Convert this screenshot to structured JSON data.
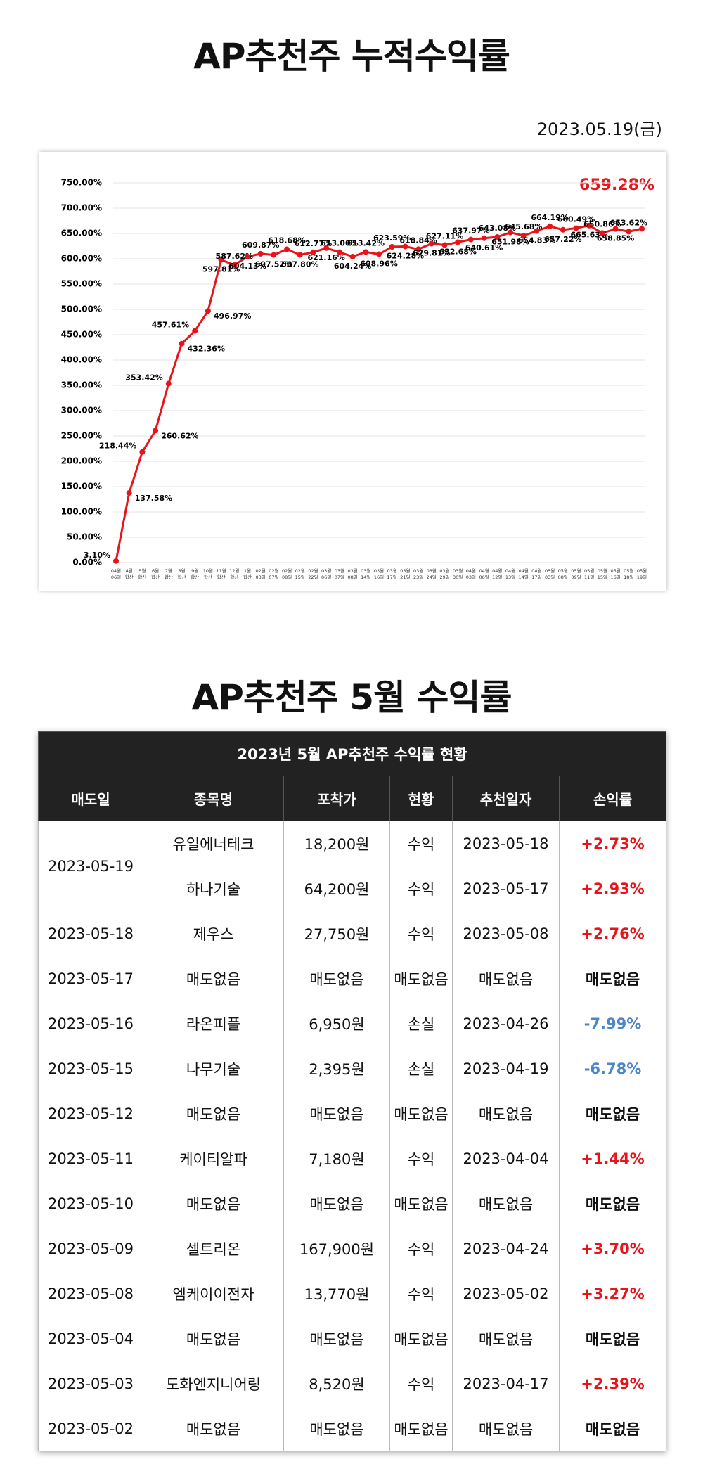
{
  "chart_data": {
    "type": "line",
    "title": "AP추천주 누적수익률",
    "date": "2023.05.19(금)",
    "annotation": "659.28%",
    "categories": [
      "04월 06일",
      "4월 합산",
      "5월 합산",
      "6월 합산",
      "7월 합산",
      "8월 합산",
      "9월 합산",
      "10월 합산",
      "11월 합산",
      "12월 합산",
      "1월 합산",
      "02월 03일",
      "02월 07일",
      "02월 08일",
      "02월 15일",
      "02월 22일",
      "03월 06일",
      "03월 07일",
      "03월 08일",
      "03월 14일",
      "03월 16일",
      "03월 17일",
      "03월 21일",
      "03월 23일",
      "03월 24일",
      "03월 29일",
      "03월 30일",
      "04월 03일",
      "04월 06일",
      "04월 12일",
      "04월 13일",
      "04월 14일",
      "04월 17일",
      "05월 03일",
      "05월 08일",
      "05월 09일",
      "05월 11일",
      "05월 15일",
      "05월 16일",
      "05월 18일",
      "05월 19일"
    ],
    "series": [
      {
        "name": "누적수익률",
        "color": "#e8141b",
        "values": [
          3.1,
          137.58,
          218.44,
          260.62,
          353.42,
          432.36,
          457.61,
          496.97,
          597.81,
          587.62,
          604.13,
          609.87,
          607.52,
          618.68,
          607.8,
          612.77,
          621.16,
          613.0,
          604.24,
          613.42,
          608.96,
          623.59,
          624.28,
          618.84,
          629.81,
          627.11,
          632.68,
          637.97,
          640.61,
          643.08,
          651.98,
          645.68,
          654.83,
          664.19,
          657.22,
          660.49,
          665.63,
          650.86,
          658.85,
          653.62,
          659.28
        ],
        "value_labels": [
          "3.10%",
          "137.58%",
          "218.44%",
          "260.62%",
          "353.42%",
          "432.36%",
          "457.61%",
          "496.97%",
          "597.81%",
          "587.62%",
          "604.13%",
          "609.87%",
          "607.52%",
          "618.68%",
          "607.80%",
          "612.77%",
          "621.16%",
          "613.00%",
          "604.24%",
          "613.42%",
          "608.96%",
          "623.59%",
          "624.28%",
          "618.84%",
          "629.81%",
          "627.11%",
          "632.68%",
          "637.97%",
          "640.61%",
          "643.08%",
          "651.98%",
          "645.68%",
          "654.83%",
          "664.19%",
          "657.22%",
          "660.49%",
          "665.63%",
          "650.86%",
          "658.85%",
          "653.62%",
          "659.28%"
        ]
      }
    ],
    "ylim": [
      0,
      750
    ],
    "yticks": [
      {
        "value": 0,
        "label": "0.00%"
      },
      {
        "value": 50,
        "label": "50.00%"
      },
      {
        "value": 100,
        "label": "100.00%"
      },
      {
        "value": 150,
        "label": "150.00%"
      },
      {
        "value": 200,
        "label": "200.00%"
      },
      {
        "value": 250,
        "label": "250.00%"
      },
      {
        "value": 300,
        "label": "300.00%"
      },
      {
        "value": 350,
        "label": "350.00%"
      },
      {
        "value": 400,
        "label": "400.00%"
      },
      {
        "value": 450,
        "label": "450.00%"
      },
      {
        "value": 500,
        "label": "500.00%"
      },
      {
        "value": 550,
        "label": "550.00%"
      },
      {
        "value": 600,
        "label": "600.00%"
      },
      {
        "value": 650,
        "label": "650.00%"
      },
      {
        "value": 700,
        "label": "700.00%"
      },
      {
        "value": 750,
        "label": "750.00%"
      }
    ],
    "grid": true
  },
  "section_title": "AP추천주 5월 수익률",
  "table": {
    "caption": "2023년 5월 AP추천주 수익률 현황",
    "headers": [
      "매도일",
      "종목명",
      "포착가",
      "현황",
      "추천일자",
      "손익률"
    ],
    "rows": [
      {
        "date": "2023-05-19",
        "items": [
          [
            "유일에너테크",
            "18,200원",
            "수익",
            "2023-05-18",
            "+2.73%"
          ],
          [
            "하나기술",
            "64,200원",
            "수익",
            "2023-05-17",
            "+2.93%"
          ]
        ]
      },
      {
        "date": "2023-05-18",
        "items": [
          [
            "제우스",
            "27,750원",
            "수익",
            "2023-05-08",
            "+2.76%"
          ]
        ]
      },
      {
        "date": "2023-05-17",
        "items": [
          [
            "매도없음",
            "매도없음",
            "매도없음",
            "매도없음",
            "매도없음"
          ]
        ]
      },
      {
        "date": "2023-05-16",
        "items": [
          [
            "라온피플",
            "6,950원",
            "손실",
            "2023-04-26",
            "-7.99%"
          ]
        ]
      },
      {
        "date": "2023-05-15",
        "items": [
          [
            "나무기술",
            "2,395원",
            "손실",
            "2023-04-19",
            "-6.78%"
          ]
        ]
      },
      {
        "date": "2023-05-12",
        "items": [
          [
            "매도없음",
            "매도없음",
            "매도없음",
            "매도없음",
            "매도없음"
          ]
        ]
      },
      {
        "date": "2023-05-11",
        "items": [
          [
            "케이티알파",
            "7,180원",
            "수익",
            "2023-04-04",
            "+1.44%"
          ]
        ]
      },
      {
        "date": "2023-05-10",
        "items": [
          [
            "매도없음",
            "매도없음",
            "매도없음",
            "매도없음",
            "매도없음"
          ]
        ]
      },
      {
        "date": "2023-05-09",
        "items": [
          [
            "셀트리온",
            "167,900원",
            "수익",
            "2023-04-24",
            "+3.70%"
          ]
        ]
      },
      {
        "date": "2023-05-08",
        "items": [
          [
            "엠케이이전자",
            "13,770원",
            "수익",
            "2023-05-02",
            "+3.27%"
          ]
        ]
      },
      {
        "date": "2023-05-04",
        "items": [
          [
            "매도없음",
            "매도없음",
            "매도없음",
            "매도없음",
            "매도없음"
          ]
        ]
      },
      {
        "date": "2023-05-03",
        "items": [
          [
            "도화엔지니어링",
            "8,520원",
            "수익",
            "2023-04-17",
            "+2.39%"
          ]
        ]
      },
      {
        "date": "2023-05-02",
        "items": [
          [
            "매도없음",
            "매도없음",
            "매도없음",
            "매도없음",
            "매도없음"
          ]
        ]
      }
    ]
  }
}
